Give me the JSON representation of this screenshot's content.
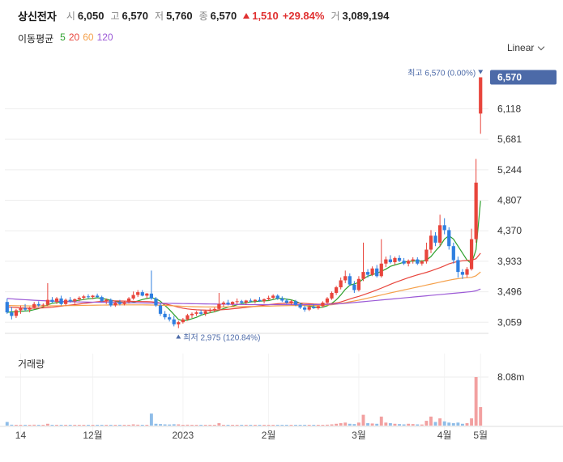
{
  "header": {
    "name": "상신전자",
    "open_label": "시",
    "open": "6,050",
    "high_label": "고",
    "high": "6,570",
    "low_label": "저",
    "low": "5,760",
    "close_label": "종",
    "close": "6,570",
    "change": "1,510",
    "change_pct": "+29.84%",
    "volume_label": "거",
    "volume": "3,089,194"
  },
  "ma_legend": {
    "title": "이동평균",
    "periods": [
      "5",
      "20",
      "60",
      "120"
    ],
    "colors": [
      "#2ca02c",
      "#e8453c",
      "#f5a04a",
      "#9b59d6"
    ]
  },
  "scale_button": "Linear",
  "colors": {
    "up": "#e8453c",
    "down": "#2f7fe0",
    "badge": "#4c6aa8",
    "grid": "#eeeeee"
  },
  "chart_data": {
    "type": "candlestick",
    "price_ticks": [
      "6,118",
      "5,681",
      "5,244",
      "4,807",
      "4,370",
      "3,933",
      "3,496",
      "3,059"
    ],
    "current_price_label": "6,570",
    "high_marker": "최고 6,570 (0.00%)",
    "low_marker": "최저 2,975 (120.84%)",
    "x_tick_labels": [
      "14",
      "12월",
      "2023",
      "2월",
      "3월",
      "4월",
      "5월"
    ],
    "volume_title": "거래량",
    "volume_tick": "8.08m",
    "ylim": [
      2900,
      6750
    ],
    "candles": [
      [
        3350,
        3400,
        3180,
        3200
      ],
      [
        3200,
        3280,
        3100,
        3150
      ],
      [
        3150,
        3250,
        3120,
        3230
      ],
      [
        3230,
        3300,
        3180,
        3260
      ],
      [
        3260,
        3320,
        3220,
        3240
      ],
      [
        3240,
        3280,
        3200,
        3270
      ],
      [
        3270,
        3350,
        3250,
        3320
      ],
      [
        3320,
        3360,
        3280,
        3300
      ],
      [
        3300,
        3330,
        3260,
        3310
      ],
      [
        3310,
        3620,
        3290,
        3380
      ],
      [
        3380,
        3420,
        3340,
        3350
      ],
      [
        3350,
        3420,
        3320,
        3400
      ],
      [
        3400,
        3440,
        3300,
        3320
      ],
      [
        3320,
        3400,
        3300,
        3380
      ],
      [
        3380,
        3420,
        3340,
        3360
      ],
      [
        3360,
        3400,
        3320,
        3390
      ],
      [
        3390,
        3430,
        3360,
        3410
      ],
      [
        3410,
        3450,
        3380,
        3430
      ],
      [
        3430,
        3460,
        3400,
        3420
      ],
      [
        3420,
        3450,
        3390,
        3440
      ],
      [
        3440,
        3470,
        3410,
        3420
      ],
      [
        3420,
        3440,
        3350,
        3360
      ],
      [
        3360,
        3400,
        3320,
        3380
      ],
      [
        3380,
        3400,
        3280,
        3300
      ],
      [
        3300,
        3360,
        3280,
        3340
      ],
      [
        3340,
        3380,
        3300,
        3320
      ],
      [
        3320,
        3360,
        3300,
        3350
      ],
      [
        3350,
        3420,
        3330,
        3400
      ],
      [
        3400,
        3500,
        3380,
        3450
      ],
      [
        3450,
        3520,
        3420,
        3490
      ],
      [
        3490,
        3520,
        3430,
        3440
      ],
      [
        3440,
        3480,
        3400,
        3470
      ],
      [
        3470,
        3800,
        3380,
        3400
      ],
      [
        3400,
        3420,
        3280,
        3300
      ],
      [
        3300,
        3340,
        3150,
        3180
      ],
      [
        3180,
        3220,
        3100,
        3130
      ],
      [
        3130,
        3180,
        3070,
        3100
      ],
      [
        3100,
        3150,
        3000,
        3030
      ],
      [
        3030,
        3080,
        2975,
        3060
      ],
      [
        3060,
        3120,
        3040,
        3100
      ],
      [
        3100,
        3180,
        3080,
        3160
      ],
      [
        3160,
        3200,
        3120,
        3180
      ],
      [
        3180,
        3220,
        3150,
        3200
      ],
      [
        3200,
        3240,
        3160,
        3180
      ],
      [
        3180,
        3230,
        3150,
        3220
      ],
      [
        3220,
        3260,
        3190,
        3230
      ],
      [
        3230,
        3270,
        3200,
        3250
      ],
      [
        3250,
        3480,
        3230,
        3320
      ],
      [
        3320,
        3360,
        3280,
        3340
      ],
      [
        3340,
        3380,
        3300,
        3320
      ],
      [
        3320,
        3360,
        3290,
        3350
      ],
      [
        3350,
        3400,
        3320,
        3360
      ],
      [
        3360,
        3380,
        3320,
        3340
      ],
      [
        3340,
        3380,
        3310,
        3370
      ],
      [
        3370,
        3400,
        3340,
        3360
      ],
      [
        3360,
        3390,
        3330,
        3380
      ],
      [
        3380,
        3420,
        3350,
        3360
      ],
      [
        3360,
        3400,
        3330,
        3390
      ],
      [
        3390,
        3440,
        3370,
        3410
      ],
      [
        3410,
        3460,
        3390,
        3440
      ],
      [
        3440,
        3460,
        3380,
        3400
      ],
      [
        3400,
        3430,
        3350,
        3370
      ],
      [
        3370,
        3400,
        3320,
        3340
      ],
      [
        3340,
        3380,
        3310,
        3360
      ],
      [
        3360,
        3380,
        3290,
        3310
      ],
      [
        3310,
        3340,
        3250,
        3270
      ],
      [
        3270,
        3300,
        3210,
        3240
      ],
      [
        3240,
        3300,
        3220,
        3280
      ],
      [
        3280,
        3320,
        3250,
        3260
      ],
      [
        3260,
        3300,
        3240,
        3290
      ],
      [
        3290,
        3360,
        3270,
        3340
      ],
      [
        3340,
        3420,
        3320,
        3400
      ],
      [
        3400,
        3500,
        3380,
        3480
      ],
      [
        3480,
        3580,
        3450,
        3560
      ],
      [
        3560,
        3700,
        3530,
        3660
      ],
      [
        3660,
        3800,
        3620,
        3720
      ],
      [
        3720,
        3760,
        3580,
        3600
      ],
      [
        3600,
        3650,
        3480,
        3520
      ],
      [
        3520,
        3720,
        3500,
        3680
      ],
      [
        3680,
        4200,
        3650,
        3780
      ],
      [
        3780,
        3820,
        3700,
        3740
      ],
      [
        3740,
        3860,
        3720,
        3830
      ],
      [
        3830,
        3880,
        3700,
        3720
      ],
      [
        3720,
        4250,
        3700,
        3900
      ],
      [
        3900,
        4000,
        3850,
        3960
      ],
      [
        3960,
        4020,
        3900,
        3920
      ],
      [
        3920,
        4000,
        3880,
        3980
      ],
      [
        3980,
        4020,
        3920,
        3940
      ],
      [
        3940,
        3980,
        3880,
        3900
      ],
      [
        3900,
        3960,
        3860,
        3940
      ],
      [
        3940,
        3990,
        3900,
        3960
      ],
      [
        3960,
        3990,
        3880,
        3900
      ],
      [
        3900,
        3950,
        3870,
        3930
      ],
      [
        3930,
        4200,
        3900,
        4100
      ],
      [
        4100,
        4380,
        4050,
        4300
      ],
      [
        4300,
        4350,
        4150,
        4200
      ],
      [
        4200,
        4600,
        4150,
        4450
      ],
      [
        4450,
        4550,
        4320,
        4380
      ],
      [
        4380,
        4420,
        4100,
        4150
      ],
      [
        4150,
        4200,
        3900,
        3950
      ],
      [
        3950,
        4000,
        3700,
        3780
      ],
      [
        3780,
        3820,
        3680,
        3740
      ],
      [
        3740,
        3850,
        3700,
        3820
      ],
      [
        3820,
        4400,
        3800,
        4250
      ],
      [
        4250,
        5400,
        4200,
        5060
      ],
      [
        6050,
        6570,
        5760,
        6570
      ]
    ],
    "ma5": [
      3200,
      3210,
      3205,
      3215,
      3220,
      3225,
      3240,
      3255,
      3280,
      3310,
      3330,
      3340,
      3350,
      3355,
      3360,
      3365,
      3375,
      3385,
      3395,
      3400,
      3410,
      3400,
      3390,
      3375,
      3360,
      3350,
      3340,
      3335,
      3345,
      3365,
      3385,
      3400,
      3410,
      3395,
      3360,
      3300,
      3240,
      3170,
      3100,
      3080,
      3090,
      3110,
      3130,
      3160,
      3180,
      3195,
      3210,
      3230,
      3255,
      3275,
      3290,
      3310,
      3325,
      3340,
      3350,
      3355,
      3360,
      3365,
      3370,
      3385,
      3400,
      3400,
      3390,
      3380,
      3360,
      3330,
      3300,
      3290,
      3280,
      3270,
      3275,
      3295,
      3330,
      3380,
      3450,
      3530,
      3590,
      3610,
      3630,
      3680,
      3720,
      3740,
      3760,
      3790,
      3820,
      3860,
      3880,
      3900,
      3920,
      3930,
      3935,
      3940,
      3935,
      3950,
      4000,
      4080,
      4150,
      4250,
      4300,
      4250,
      4150,
      4050,
      3950,
      3900,
      4100,
      4800
    ],
    "ma20": [
      3280,
      3275,
      3270,
      3265,
      3262,
      3260,
      3260,
      3262,
      3265,
      3270,
      3275,
      3282,
      3290,
      3298,
      3305,
      3312,
      3320,
      3328,
      3336,
      3345,
      3352,
      3358,
      3362,
      3365,
      3365,
      3364,
      3362,
      3360,
      3358,
      3357,
      3356,
      3355,
      3352,
      3345,
      3335,
      3322,
      3308,
      3292,
      3275,
      3260,
      3250,
      3243,
      3238,
      3235,
      3233,
      3232,
      3233,
      3236,
      3240,
      3245,
      3252,
      3258,
      3265,
      3272,
      3280,
      3287,
      3295,
      3302,
      3310,
      3318,
      3325,
      3330,
      3333,
      3335,
      3336,
      3334,
      3330,
      3325,
      3320,
      3318,
      3318,
      3320,
      3326,
      3336,
      3350,
      3370,
      3392,
      3412,
      3430,
      3452,
      3475,
      3498,
      3522,
      3548,
      3575,
      3602,
      3628,
      3652,
      3675,
      3698,
      3718,
      3738,
      3756,
      3774,
      3795,
      3818,
      3842,
      3868,
      3896,
      3915,
      3930,
      3940,
      3945,
      3948,
      3970,
      4050
    ],
    "ma60": [
      3300,
      3298,
      3296,
      3295,
      3294,
      3293,
      3292,
      3292,
      3292,
      3293,
      3294,
      3295,
      3296,
      3297,
      3298,
      3299,
      3300,
      3301,
      3302,
      3303,
      3304,
      3305,
      3306,
      3307,
      3308,
      3308,
      3308,
      3308,
      3308,
      3308,
      3308,
      3307,
      3306,
      3305,
      3303,
      3300,
      3297,
      3294,
      3291,
      3288,
      3285,
      3283,
      3281,
      3280,
      3279,
      3278,
      3278,
      3278,
      3279,
      3280,
      3281,
      3282,
      3283,
      3284,
      3285,
      3286,
      3287,
      3288,
      3290,
      3292,
      3294,
      3296,
      3297,
      3298,
      3299,
      3299,
      3299,
      3299,
      3299,
      3300,
      3302,
      3305,
      3310,
      3318,
      3328,
      3340,
      3352,
      3364,
      3376,
      3390,
      3405,
      3420,
      3435,
      3450,
      3465,
      3480,
      3494,
      3508,
      3522,
      3536,
      3550,
      3564,
      3578,
      3592,
      3606,
      3620,
      3634,
      3648,
      3662,
      3674,
      3684,
      3692,
      3698,
      3702,
      3725,
      3780
    ],
    "ma120": [
      3400,
      3395,
      3390,
      3386,
      3382,
      3378,
      3374,
      3371,
      3368,
      3365,
      3362,
      3360,
      3358,
      3356,
      3354,
      3352,
      3350,
      3349,
      3348,
      3347,
      3346,
      3345,
      3344,
      3343,
      3342,
      3341,
      3340,
      3339,
      3338,
      3337,
      3336,
      3335,
      3334,
      3333,
      3332,
      3331,
      3330,
      3329,
      3328,
      3327,
      3326,
      3325,
      3324,
      3323,
      3322,
      3321,
      3320,
      3319,
      3318,
      3317,
      3316,
      3315,
      3314,
      3313,
      3312,
      3312,
      3312,
      3312,
      3312,
      3312,
      3312,
      3312,
      3312,
      3312,
      3312,
      3312,
      3312,
      3312,
      3312,
      3313,
      3314,
      3316,
      3318,
      3321,
      3325,
      3330,
      3336,
      3342,
      3348,
      3354,
      3360,
      3366,
      3372,
      3378,
      3384,
      3390,
      3396,
      3402,
      3408,
      3414,
      3420,
      3426,
      3432,
      3438,
      3444,
      3450,
      3456,
      3462,
      3468,
      3474,
      3480,
      3486,
      3492,
      3498,
      3510,
      3535
    ],
    "volume_max": 8080000,
    "volumes": [
      600000,
      150000,
      100000,
      120000,
      100000,
      80000,
      150000,
      90000,
      80000,
      300000,
      100000,
      120000,
      90000,
      80000,
      70000,
      90000,
      100000,
      80000,
      70000,
      80000,
      70000,
      90000,
      80000,
      100000,
      80000,
      70000,
      80000,
      120000,
      200000,
      150000,
      100000,
      80000,
      2000000,
      300000,
      250000,
      200000,
      180000,
      220000,
      200000,
      120000,
      150000,
      110000,
      100000,
      90000,
      100000,
      90000,
      100000,
      400000,
      120000,
      100000,
      90000,
      80000,
      70000,
      80000,
      70000,
      80000,
      90000,
      80000,
      100000,
      120000,
      90000,
      80000,
      70000,
      80000,
      90000,
      100000,
      90000,
      100000,
      80000,
      80000,
      90000,
      150000,
      200000,
      300000,
      400000,
      500000,
      300000,
      250000,
      500000,
      1800000,
      400000,
      350000,
      300000,
      1500000,
      500000,
      400000,
      300000,
      250000,
      200000,
      300000,
      250000,
      200000,
      180000,
      800000,
      1500000,
      600000,
      1200000,
      700000,
      500000,
      400000,
      500000,
      300000,
      400000,
      1200000,
      8080000,
      3089194
    ]
  }
}
